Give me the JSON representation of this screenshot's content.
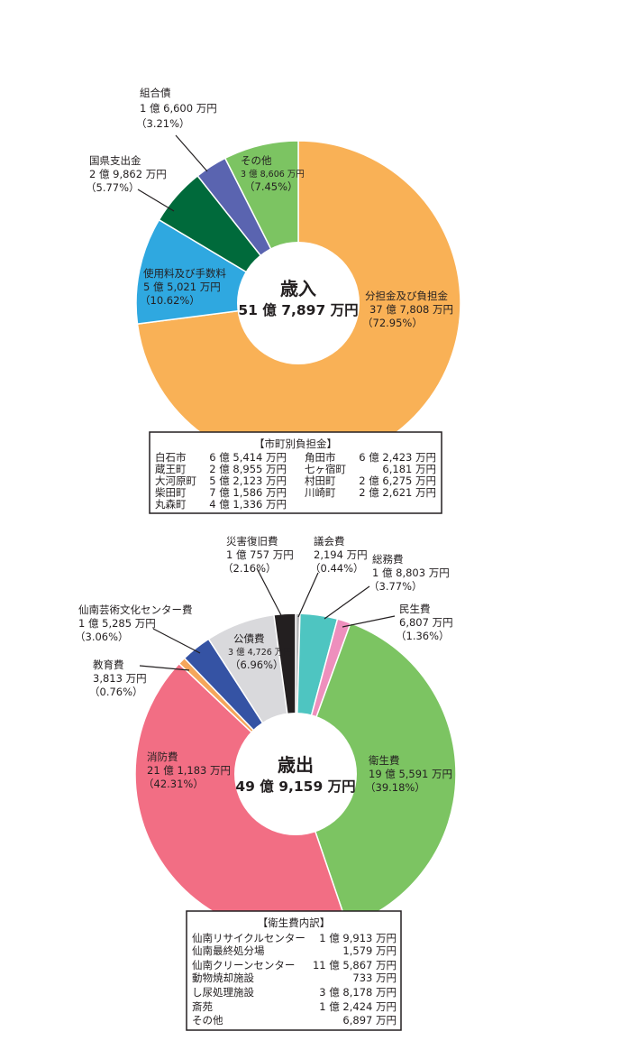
{
  "chart_data": [
    {
      "type": "pie",
      "name": "revenue",
      "center": {
        "title": "歳入",
        "total": "51 億 7,897 万円"
      },
      "slices": [
        {
          "key": "futan",
          "label": "分担金及び負担金",
          "amount": "37 億 7,808 万円",
          "pct_text": "（72.95%）",
          "value": 72.95,
          "color": "#f9b156"
        },
        {
          "key": "shiyo",
          "label": "使用料及び手数料",
          "amount": "5 億 5,021 万円",
          "pct_text": "（10.62%）",
          "value": 10.62,
          "color": "#2fa8e0"
        },
        {
          "key": "koku",
          "label": "国県支出金",
          "amount": "2 億 9,862 万円",
          "pct_text": "（5.77%）",
          "value": 5.77,
          "color": "#006a3b"
        },
        {
          "key": "kumiai",
          "label": "組合債",
          "amount": "1 億 6,600 万円",
          "pct_text": "（3.21%）",
          "value": 3.21,
          "color": "#5a64b0"
        },
        {
          "key": "other",
          "label": "その他",
          "amount": "3 億 8,606 万円",
          "pct_text": "（7.45%）",
          "value": 7.45,
          "color": "#7cc462"
        }
      ],
      "table": {
        "title": "【市町別負担金】",
        "rows": [
          {
            "name": "白石市",
            "value": "6 億 5,414 万円"
          },
          {
            "name": "蔵王町",
            "value": "2 億 8,955 万円"
          },
          {
            "name": "大河原町",
            "value": "5 億 2,123 万円"
          },
          {
            "name": "柴田町",
            "value": "7 億 1,586 万円"
          },
          {
            "name": "丸森町",
            "value": "4 億 1,336 万円"
          },
          {
            "name": "角田市",
            "value": "6 億 2,423 万円"
          },
          {
            "name": "七ヶ宿町",
            "value": "6,181 万円"
          },
          {
            "name": "村田町",
            "value": "2 億 6,275 万円"
          },
          {
            "name": "川崎町",
            "value": "2 億 2,621 万円"
          }
        ]
      }
    },
    {
      "type": "pie",
      "name": "expenditure",
      "center": {
        "title": "歳出",
        "total": "49 億 9,159 万円"
      },
      "slices": [
        {
          "key": "gikai",
          "label": "議会費",
          "amount": "2,194 万円",
          "pct_text": "（0.44%）",
          "value": 0.44,
          "color": "#b7b8ba"
        },
        {
          "key": "somu",
          "label": "総務費",
          "amount": "1 億 8,803 万円",
          "pct_text": "（3.77%）",
          "value": 3.77,
          "color": "#4ec5c1"
        },
        {
          "key": "minsei",
          "label": "民生費",
          "amount": "6,807 万円",
          "pct_text": "（1.36%）",
          "value": 1.36,
          "color": "#ee8fbd"
        },
        {
          "key": "eisei",
          "label": "衛生費",
          "amount": "19 億 5,591 万円",
          "pct_text": "（39.18%）",
          "value": 39.18,
          "color": "#7cc462"
        },
        {
          "key": "shobo",
          "label": "消防費",
          "amount": "21 億 1,183 万円",
          "pct_text": "（42.31%）",
          "value": 42.31,
          "color": "#f26e84"
        },
        {
          "key": "kyoiku",
          "label": "教育費",
          "amount": "3,813 万円",
          "pct_text": "（0.76%）",
          "value": 0.76,
          "color": "#f5a65b"
        },
        {
          "key": "geijutsu",
          "label": "仙南芸術文化センター費",
          "amount": "1 億 5,285 万円",
          "pct_text": "（3.06%）",
          "value": 3.06,
          "color": "#3553a4"
        },
        {
          "key": "kosai",
          "label": "公債費",
          "amount": "3 億 4,726 万円",
          "pct_text": "（6.96%）",
          "value": 6.96,
          "color": "#d9d9dc"
        },
        {
          "key": "saigai",
          "label": "災害復旧費",
          "amount": "1 億 757 万円",
          "pct_text": "（2.16%）",
          "value": 2.16,
          "color": "#231f20"
        }
      ],
      "table": {
        "title": "【衛生費内訳】",
        "rows": [
          {
            "name": "仙南リサイクルセンター",
            "value": "1 億 9,913 万円"
          },
          {
            "name": "仙南最終処分場",
            "value": "1,579 万円"
          },
          {
            "name": "仙南クリーンセンター",
            "value": "11 億 5,867 万円"
          },
          {
            "name": "動物焼却施設",
            "value": "733 万円"
          },
          {
            "name": "し尿処理施設",
            "value": "3 億 8,178 万円"
          },
          {
            "name": "斎苑",
            "value": "1 億 2,424 万円"
          },
          {
            "name": "その他",
            "value": "6,897 万円"
          }
        ]
      }
    }
  ]
}
